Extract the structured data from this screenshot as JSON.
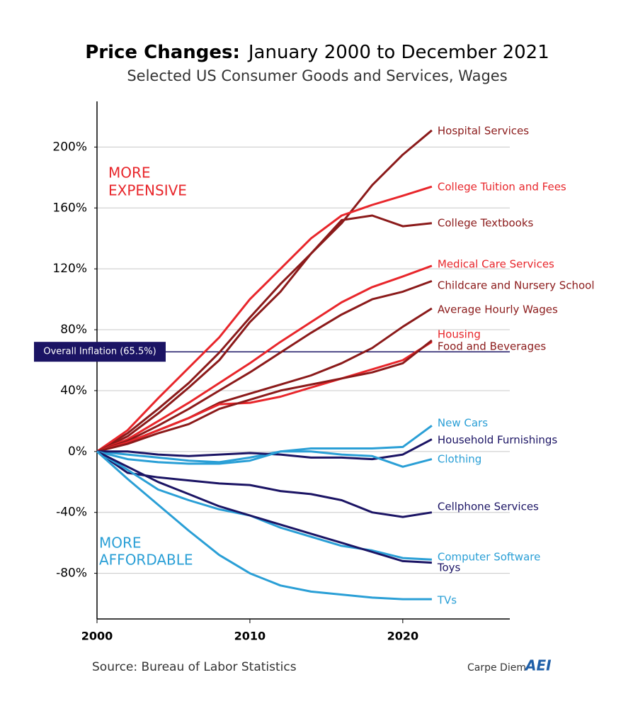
{
  "chart_data": {
    "type": "line",
    "title": "Price Changes:",
    "title_detail": "January 2000 to December 2021",
    "subtitle": "Selected US Consumer Goods and Services, Wages",
    "annotations": [
      "MORE",
      "EXPENSIVE",
      "MORE",
      "AFFORDABLE"
    ],
    "source": "Source: Bureau of Labor Statistics",
    "brand": "Carpe Diem",
    "brand_logo": "AEI",
    "reference_line": {
      "value": 65.5,
      "label": "Overall Inflation (65.5%)",
      "color": "#1b1464"
    },
    "x": [
      2000,
      2002,
      2004,
      2006,
      2008,
      2010,
      2012,
      2014,
      2016,
      2018,
      2020,
      2021.9
    ],
    "xlim": [
      2000,
      2027
    ],
    "xticks": [
      2000,
      2010,
      2020
    ],
    "ylim": [
      -110,
      230
    ],
    "yticks": [
      {
        "value": -80,
        "label": "-80%"
      },
      {
        "value": -40,
        "label": "-40%"
      },
      {
        "value": 0,
        "label": "0%"
      },
      {
        "value": 40,
        "label": "40%"
      },
      {
        "value": 80,
        "label": "80%"
      },
      {
        "value": 120,
        "label": "120%"
      },
      {
        "value": 160,
        "label": "160%"
      },
      {
        "value": 200,
        "label": "200%"
      }
    ],
    "grid": true,
    "series": [
      {
        "name": "Hospital Services",
        "color": "#8b1a1a",
        "values": [
          0,
          12,
          28,
          45,
          65,
          88,
          110,
          130,
          150,
          175,
          195,
          211
        ]
      },
      {
        "name": "College Tuition and Fees",
        "color": "#e8262b",
        "values": [
          0,
          14,
          35,
          55,
          75,
          100,
          120,
          140,
          155,
          162,
          168,
          174
        ]
      },
      {
        "name": "College Textbooks",
        "color": "#8b1a1a",
        "values": [
          0,
          10,
          25,
          42,
          60,
          85,
          105,
          130,
          152,
          155,
          148,
          150
        ]
      },
      {
        "name": "Medical Care Services",
        "color": "#e8262b",
        "values": [
          0,
          8,
          20,
          32,
          45,
          58,
          72,
          85,
          98,
          108,
          115,
          122
        ]
      },
      {
        "name": "Childcare and Nursery School",
        "color": "#8b1a1a",
        "values": [
          0,
          7,
          17,
          28,
          40,
          52,
          65,
          78,
          90,
          100,
          105,
          112
        ]
      },
      {
        "name": "Average Hourly Wages",
        "color": "#8b1a1a",
        "values": [
          0,
          6,
          14,
          22,
          32,
          38,
          44,
          50,
          58,
          68,
          82,
          94
        ]
      },
      {
        "name": "Housing",
        "color": "#e8262b",
        "values": [
          0,
          6,
          14,
          22,
          31,
          32,
          36,
          42,
          48,
          54,
          60,
          72
        ]
      },
      {
        "name": "Food and Beverages",
        "color": "#8b1a1a",
        "values": [
          0,
          5,
          12,
          18,
          28,
          34,
          40,
          44,
          48,
          52,
          58,
          73
        ]
      },
      {
        "name": "New Cars",
        "color": "#2a9fd6",
        "values": [
          0,
          -2,
          -4,
          -6,
          -7,
          -4,
          0,
          2,
          2,
          2,
          3,
          17
        ]
      },
      {
        "name": "Household Furnishings",
        "color": "#1b1464",
        "values": [
          0,
          0,
          -2,
          -3,
          -2,
          -1,
          -2,
          -4,
          -4,
          -5,
          -2,
          8
        ]
      },
      {
        "name": "Clothing",
        "color": "#2a9fd6",
        "values": [
          0,
          -5,
          -7,
          -8,
          -8,
          -6,
          0,
          0,
          -2,
          -3,
          -10,
          -5
        ]
      },
      {
        "name": "Cellphone Services",
        "color": "#1b1464",
        "values": [
          0,
          -14,
          -17,
          -19,
          -21,
          -22,
          -26,
          -28,
          -32,
          -40,
          -43,
          -40
        ]
      },
      {
        "name": "Computer Software",
        "color": "#2a9fd6",
        "values": [
          0,
          -12,
          -25,
          -32,
          -38,
          -42,
          -50,
          -56,
          -62,
          -65,
          -70,
          -71
        ]
      },
      {
        "name": "Toys",
        "color": "#1b1464",
        "values": [
          0,
          -10,
          -20,
          -28,
          -36,
          -42,
          -48,
          -54,
          -60,
          -66,
          -72,
          -73
        ]
      },
      {
        "name": "TVs",
        "color": "#2a9fd6",
        "values": [
          0,
          -18,
          -35,
          -52,
          -68,
          -80,
          -88,
          -92,
          -94,
          -96,
          -97,
          -97
        ]
      }
    ]
  }
}
